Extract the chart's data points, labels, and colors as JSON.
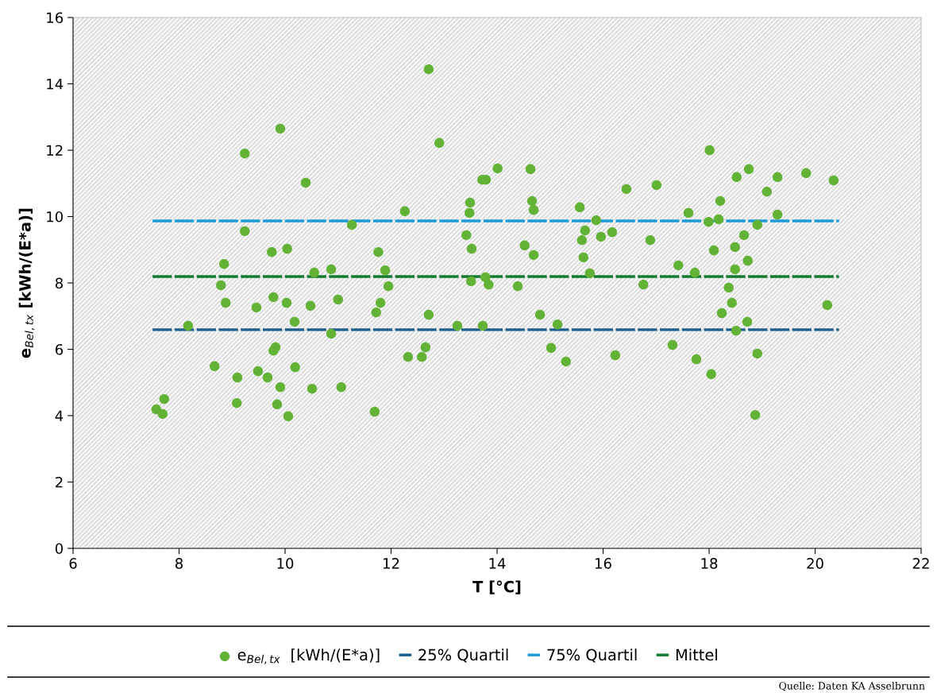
{
  "chart_data": {
    "type": "scatter",
    "xlabel": "T [°C]",
    "ylabel": "e$_{Bel,tx}$ [kWh/(E*a)]",
    "xlim": [
      6,
      22
    ],
    "xticks": [
      6,
      8,
      10,
      12,
      14,
      16,
      18,
      20,
      22
    ],
    "ylim": [
      0,
      16
    ],
    "yticks": [
      0,
      2,
      4,
      6,
      8,
      10,
      12,
      14,
      16
    ],
    "grid": false,
    "legend": "bottom",
    "annotations": [
      "Quelle: Daten KA Asselbrunn"
    ],
    "series": [
      {
        "name": "e$_{Bel,tx}$  [kWh/(E*a)]",
        "marker": "circle",
        "color": "#62b236",
        "x": [
          7.57,
          7.72,
          7.69,
          8.17,
          8.67,
          8.79,
          8.85,
          8.88,
          9.09,
          9.1,
          9.24,
          9.24,
          9.46,
          9.49,
          9.67,
          9.75,
          9.78,
          9.78,
          9.82,
          9.85,
          9.91,
          9.91,
          10.04,
          10.03,
          10.06,
          10.18,
          10.19,
          10.39,
          10.48,
          10.51,
          10.55,
          10.87,
          10.87,
          11.0,
          11.06,
          11.26,
          11.69,
          11.72,
          11.76,
          11.8,
          11.89,
          11.95,
          12.26,
          12.32,
          12.58,
          12.65,
          12.71,
          12.71,
          12.91,
          13.25,
          13.42,
          13.48,
          13.49,
          13.52,
          13.51,
          13.72,
          13.79,
          13.73,
          13.78,
          13.84,
          14.01,
          14.39,
          14.52,
          14.63,
          14.66,
          14.69,
          14.69,
          14.81,
          15.02,
          15.14,
          15.3,
          15.56,
          15.6,
          15.66,
          15.63,
          15.75,
          15.87,
          15.96,
          16.17,
          16.23,
          16.44,
          16.76,
          16.89,
          17.01,
          17.31,
          17.42,
          17.61,
          17.73,
          17.76,
          17.99,
          18.01,
          18.04,
          18.09,
          18.18,
          18.21,
          18.24,
          18.37,
          18.43,
          18.49,
          18.51,
          18.49,
          18.52,
          18.66,
          18.72,
          18.73,
          18.75,
          18.87,
          18.91,
          18.91,
          19.09,
          19.29,
          19.29,
          19.83,
          20.23,
          20.35
        ],
        "values": [
          4.19,
          4.5,
          4.05,
          6.71,
          5.49,
          7.93,
          8.57,
          7.4,
          4.38,
          5.15,
          11.9,
          9.56,
          7.26,
          5.34,
          5.15,
          8.93,
          7.57,
          5.96,
          6.06,
          4.34,
          12.65,
          4.86,
          9.03,
          7.4,
          3.98,
          6.83,
          5.46,
          11.02,
          7.31,
          4.81,
          8.31,
          8.41,
          6.47,
          7.5,
          4.86,
          9.75,
          4.12,
          7.11,
          8.93,
          7.4,
          8.38,
          7.9,
          10.16,
          5.77,
          5.77,
          6.06,
          7.04,
          14.44,
          12.22,
          6.71,
          9.44,
          10.11,
          10.42,
          9.03,
          8.05,
          11.11,
          11.11,
          6.71,
          8.17,
          7.95,
          11.45,
          7.9,
          9.13,
          11.43,
          10.47,
          10.2,
          8.84,
          7.04,
          6.04,
          6.75,
          5.63,
          10.28,
          9.29,
          9.58,
          8.77,
          8.29,
          9.89,
          9.39,
          9.53,
          5.82,
          10.83,
          7.95,
          9.29,
          10.95,
          6.13,
          8.53,
          10.11,
          8.31,
          5.7,
          9.84,
          12.0,
          5.25,
          8.98,
          9.92,
          10.47,
          7.09,
          7.86,
          7.4,
          8.41,
          6.56,
          9.08,
          11.19,
          9.44,
          6.83,
          8.67,
          11.43,
          4.02,
          5.87,
          9.75,
          10.75,
          11.19,
          10.06,
          11.31,
          7.33,
          11.09
        ]
      },
      {
        "name": "25% Quartil",
        "type": "line",
        "line_style": "dashed",
        "color": "#1b5e8c",
        "x": [
          7.5,
          20.45
        ],
        "values": [
          6.59,
          6.59
        ]
      },
      {
        "name": "75% Quartil",
        "type": "line",
        "line_style": "dashed",
        "color": "#1e9bd7",
        "x": [
          7.5,
          20.45
        ],
        "values": [
          9.87,
          9.87
        ]
      },
      {
        "name": "Mittel",
        "type": "line",
        "line_style": "dashed",
        "color": "#137a2f",
        "x": [
          7.5,
          20.45
        ],
        "values": [
          8.19,
          8.19
        ]
      }
    ]
  }
}
